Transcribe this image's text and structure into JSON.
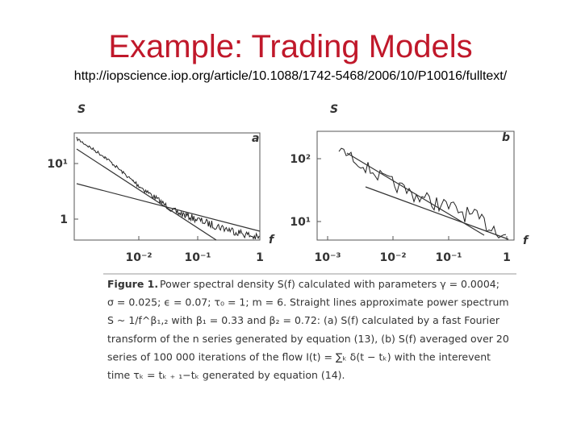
{
  "title": "Example: Trading Models",
  "url": "http://iopscience.iop.org/article/10.1088/1742-5468/2006/10/P10016/fulltext/",
  "figure": {
    "panels": [
      {
        "label": "a",
        "y_axis_label": "S",
        "x_axis_label": "f",
        "yticks": [
          "10¹",
          "1"
        ],
        "xticks": [
          "10⁻²",
          "10⁻¹",
          "1"
        ]
      },
      {
        "label": "b",
        "y_axis_label": "S",
        "x_axis_label": "f",
        "yticks": [
          "10²",
          "10¹"
        ],
        "xticks": [
          "10⁻³",
          "10⁻²",
          "10⁻¹",
          "1"
        ]
      }
    ],
    "caption_heading": "Figure 1.",
    "caption_lines": [
      "Power spectral density S(f) calculated with parameters γ = 0.0004;",
      "σ = 0.025; ϵ = 0.07; τ₀ = 1; m = 6. Straight lines approximate power spectrum",
      "S ~ 1/f^β₁,₂ with β₁ = 0.33 and β₂ = 0.72: (a) S(f) calculated by a fast Fourier",
      "transform of the n series generated by equation (13), (b) S(f) averaged over 20",
      "series of 100 000 iterations of the flow I(t) = ∑ₖ δ(t − tₖ) with the interevent",
      "time τₖ = tₖ ₊ ₁−tₖ generated by equation (14)."
    ]
  }
}
